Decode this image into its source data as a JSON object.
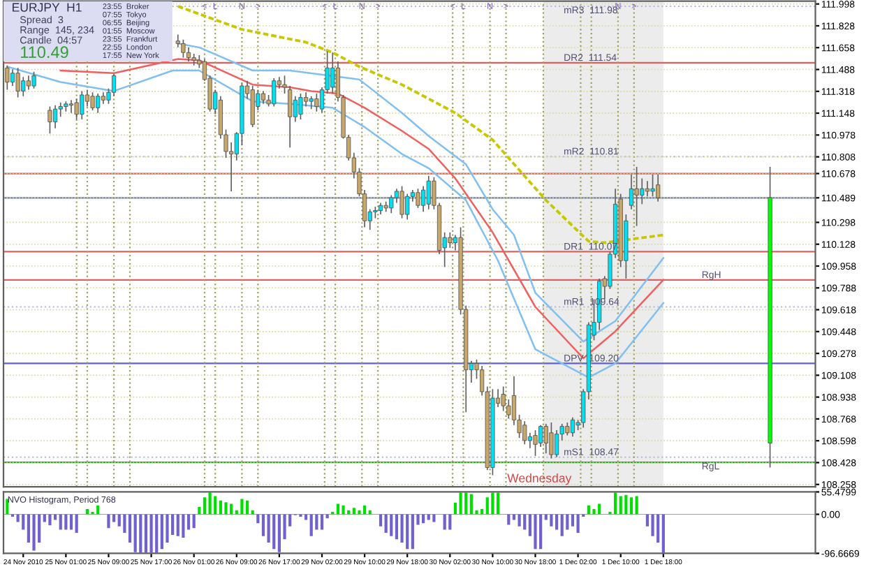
{
  "chart_data": [
    {
      "type": "candlestick",
      "title": "EURJPY  H1",
      "annotations": [
        "Spread  3",
        "Range  145, 234",
        "Candle  04:57",
        "110.49",
        "23:55  Broker",
        "07:55  Tokyo",
        "06:55  Beijing",
        "01:55  Moscow",
        "23:55  Frankfurt",
        "22:55  London",
        "17:55  New York",
        "Wednesday",
        "<",
        "L",
        "N",
        ">",
        "<",
        "L",
        "N",
        ">",
        "<",
        "L",
        "N",
        ">",
        "N",
        ">"
      ],
      "categories": [
        null,
        null,
        null,
        null,
        null,
        null,
        null,
        null,
        null,
        null,
        null,
        null,
        null,
        null,
        null,
        null,
        null,
        null,
        null,
        null,
        null,
        null,
        null,
        null,
        null,
        null,
        null,
        null,
        null,
        null,
        null,
        null,
        null,
        null,
        null,
        null,
        null,
        null,
        null,
        null,
        null,
        null,
        null,
        null,
        null,
        null,
        null,
        null,
        null,
        null,
        null,
        null,
        null,
        null,
        null,
        null,
        null,
        null,
        null,
        null,
        null,
        null,
        null,
        null,
        null,
        null,
        null,
        null,
        null,
        null,
        null,
        null,
        null,
        null,
        null,
        null,
        null,
        null,
        null,
        null,
        null,
        null,
        null,
        null,
        null,
        null,
        null,
        null,
        null,
        null,
        null,
        null,
        null,
        null,
        null,
        null,
        null,
        null,
        null,
        null,
        null,
        null,
        null,
        null,
        null,
        null,
        null,
        null,
        null,
        null,
        null,
        null,
        null,
        null,
        null,
        null,
        null,
        null,
        null,
        null,
        null,
        null,
        null,
        null,
        null,
        null,
        null,
        null,
        null,
        null,
        null,
        null,
        null,
        null,
        null,
        null,
        null,
        null,
        null,
        null,
        null,
        null,
        null,
        null,
        null,
        null,
        null,
        null,
        null,
        null,
        null,
        null
      ],
      "ylim": [
        108.24,
        112.02
      ],
      "yticks": [
        111.998,
        111.828,
        111.658,
        111.488,
        111.318,
        111.148,
        110.978,
        110.808,
        {
          "value": 110.678,
          "label": "110.678"
        },
        {
          "value": 110.489,
          "label": "110.489"
        },
        110.298,
        110.128,
        109.958,
        109.788,
        109.618,
        109.448,
        109.278,
        109.108,
        108.938,
        108.768,
        108.598,
        108.428,
        108.258
      ],
      "tick_labels": "y",
      "grid": "y",
      "legend": false,
      "ohlc": [
        [
          111.5,
          111.52,
          111.33,
          111.39
        ],
        [
          111.39,
          111.49,
          111.36,
          111.46
        ],
        [
          111.46,
          111.5,
          111.27,
          111.32
        ],
        [
          111.32,
          111.43,
          111.28,
          111.4
        ],
        [
          111.4,
          111.44,
          111.33,
          111.36
        ],
        [
          111.36,
          111.47,
          111.34,
          111.44
        ],
        null,
        null,
        [
          111.17,
          111.2,
          110.99,
          111.08
        ],
        [
          111.08,
          111.21,
          111.03,
          111.18
        ],
        [
          111.18,
          111.23,
          111.12,
          111.2
        ],
        [
          111.2,
          111.24,
          111.16,
          111.22
        ],
        [
          111.22,
          111.25,
          111.15,
          111.21
        ],
        [
          111.23,
          111.26,
          111.1,
          111.14
        ],
        [
          111.14,
          111.32,
          111.1,
          111.29
        ],
        [
          111.29,
          111.33,
          111.2,
          111.24
        ],
        [
          111.28,
          111.31,
          111.17,
          111.19
        ],
        [
          111.19,
          111.3,
          111.15,
          111.28
        ],
        [
          111.28,
          111.31,
          111.22,
          111.25
        ],
        [
          111.25,
          111.34,
          111.22,
          111.31
        ],
        [
          111.31,
          111.45,
          111.28,
          111.44
        ],
        null,
        null,
        null,
        null,
        null,
        null,
        null,
        null,
        null,
        null,
        null,
        [
          111.71,
          111.76,
          111.66,
          111.69
        ],
        [
          111.69,
          111.72,
          111.58,
          111.62
        ],
        [
          111.62,
          111.66,
          111.55,
          111.58
        ],
        [
          111.58,
          111.61,
          111.52,
          111.56
        ],
        [
          111.56,
          111.6,
          111.5,
          111.53
        ],
        [
          111.55,
          111.57,
          111.4,
          111.41
        ],
        [
          111.42,
          111.44,
          111.16,
          111.18
        ],
        [
          111.18,
          111.33,
          111.14,
          111.31
        ],
        [
          111.25,
          111.28,
          110.95,
          110.98
        ],
        [
          110.98,
          111.02,
          110.8,
          110.85
        ],
        [
          110.85,
          110.92,
          110.54,
          110.83
        ],
        [
          110.83,
          111.0,
          110.78,
          110.99
        ],
        [
          110.99,
          111.38,
          110.9,
          111.36
        ],
        [
          111.36,
          111.4,
          111.26,
          111.3
        ],
        [
          111.33,
          111.36,
          111.04,
          111.06
        ],
        [
          111.2,
          111.33,
          111.17,
          111.3
        ],
        [
          111.3,
          111.32,
          111.22,
          111.25
        ],
        [
          111.25,
          111.29,
          111.2,
          111.22
        ],
        [
          111.22,
          111.42,
          111.2,
          111.4
        ],
        [
          111.4,
          111.43,
          111.34,
          111.37
        ],
        [
          111.37,
          111.44,
          111.3,
          111.35
        ],
        [
          111.33,
          111.36,
          110.88,
          111.12
        ],
        [
          111.12,
          111.28,
          111.08,
          111.25
        ],
        [
          111.14,
          111.3,
          111.1,
          111.27
        ],
        [
          111.27,
          111.31,
          111.2,
          111.24
        ],
        [
          111.24,
          111.28,
          111.18,
          111.26
        ],
        [
          111.26,
          111.3,
          111.16,
          111.2
        ],
        [
          111.18,
          111.35,
          111.15,
          111.33
        ],
        [
          111.33,
          111.63,
          111.3,
          111.5
        ],
        [
          111.35,
          111.62,
          111.3,
          111.5
        ],
        [
          111.5,
          111.55,
          111.24,
          111.27
        ],
        [
          111.27,
          111.29,
          110.95,
          110.96
        ],
        [
          110.96,
          110.98,
          110.78,
          110.8
        ],
        [
          110.8,
          110.84,
          110.64,
          110.69
        ],
        [
          110.69,
          110.72,
          110.5,
          110.52
        ],
        [
          110.52,
          110.55,
          110.26,
          110.31
        ],
        [
          110.31,
          110.4,
          110.24,
          110.38
        ],
        [
          110.38,
          110.42,
          110.33,
          110.39
        ],
        [
          110.39,
          110.45,
          110.36,
          110.43
        ],
        [
          110.43,
          110.46,
          110.38,
          110.41
        ],
        [
          110.41,
          110.51,
          110.37,
          110.49
        ],
        [
          110.49,
          110.56,
          110.45,
          110.54
        ],
        [
          110.54,
          110.58,
          110.33,
          110.36
        ],
        [
          110.36,
          110.52,
          110.32,
          110.5
        ],
        [
          110.5,
          110.55,
          110.46,
          110.53
        ],
        [
          110.53,
          110.56,
          110.41,
          110.43
        ],
        [
          110.43,
          110.58,
          110.38,
          110.55
        ],
        [
          110.44,
          110.66,
          110.4,
          110.62
        ],
        [
          110.62,
          110.65,
          110.4,
          110.43
        ],
        [
          110.43,
          110.45,
          110.05,
          110.08
        ],
        [
          110.1,
          110.22,
          109.95,
          110.18
        ],
        [
          110.18,
          110.22,
          110.1,
          110.14
        ],
        [
          110.14,
          110.2,
          110.08,
          110.18
        ],
        [
          110.18,
          110.26,
          109.58,
          109.62
        ],
        [
          109.62,
          109.65,
          108.82,
          109.15
        ],
        [
          109.15,
          109.22,
          109.05,
          109.2
        ],
        [
          109.2,
          109.23,
          109.08,
          109.15
        ],
        [
          109.15,
          109.18,
          108.95,
          108.98
        ],
        [
          108.98,
          109.02,
          108.37,
          108.39
        ],
        [
          108.39,
          109.0,
          108.33,
          108.93
        ],
        [
          108.93,
          109.0,
          108.86,
          108.89
        ],
        [
          108.96,
          109.02,
          108.83,
          108.87
        ],
        [
          108.87,
          108.92,
          108.77,
          108.8
        ],
        [
          108.95,
          109.1,
          108.72,
          108.76
        ],
        [
          108.76,
          108.8,
          108.62,
          108.66
        ],
        [
          108.72,
          108.75,
          108.57,
          108.6
        ],
        [
          108.6,
          108.66,
          108.54,
          108.63
        ],
        [
          108.64,
          108.68,
          108.48,
          108.57
        ],
        [
          108.58,
          108.72,
          108.55,
          108.71
        ],
        [
          108.71,
          108.73,
          108.5,
          108.58
        ],
        [
          108.66,
          108.74,
          108.46,
          108.49
        ],
        [
          108.49,
          108.68,
          108.47,
          108.65
        ],
        [
          108.65,
          108.73,
          108.6,
          108.71
        ],
        [
          108.71,
          108.74,
          108.64,
          108.66
        ],
        [
          108.66,
          108.78,
          108.63,
          108.76
        ],
        [
          108.72,
          108.76,
          108.68,
          108.74
        ],
        [
          108.74,
          109.0,
          108.7,
          108.98
        ],
        [
          108.98,
          109.52,
          108.92,
          109.5
        ],
        [
          109.42,
          109.7,
          109.38,
          109.52
        ],
        [
          109.52,
          109.86,
          109.46,
          109.84
        ],
        [
          109.86,
          109.88,
          109.7,
          109.8
        ],
        [
          109.8,
          110.07,
          109.78,
          110.05
        ],
        [
          110.05,
          110.56,
          110.02,
          110.44
        ],
        [
          110.48,
          110.52,
          109.95,
          110.0
        ],
        [
          110.0,
          110.36,
          109.86,
          110.31
        ],
        [
          110.43,
          110.67,
          110.4,
          110.56
        ],
        [
          110.56,
          110.73,
          110.27,
          110.51
        ],
        [
          110.51,
          110.64,
          110.44,
          110.56
        ],
        [
          110.56,
          110.62,
          110.5,
          110.54
        ],
        [
          110.54,
          110.67,
          110.5,
          110.56
        ],
        [
          110.59,
          110.67,
          110.46,
          110.49
        ],
        null,
        null,
        null,
        null,
        null,
        null,
        null,
        null,
        null,
        null,
        null,
        null,
        null,
        null,
        null,
        null,
        null,
        null,
        null,
        null,
        [
          108.58,
          110.73,
          108.39,
          110.49
        ],
        null,
        null,
        null,
        null,
        null,
        null,
        null,
        null
      ],
      "colors": [
        "#c8a868",
        "#00e0f0",
        "#c8a868",
        "#00e0f0",
        "#c8a868",
        "#00e0f0",
        null,
        null,
        "#c8a868",
        "#00e0f0",
        "#00e0f0",
        "#00e0f0",
        "#c8a868",
        "#c8a868",
        "#00e0f0",
        "#c8a868",
        "#c8a868",
        "#00e0f0",
        "#c8a868",
        "#00e0f0",
        "#00e0f0",
        null,
        null,
        null,
        null,
        null,
        null,
        null,
        null,
        null,
        null,
        null,
        "#c8a868",
        "#c8a868",
        "#c8a868",
        "#c8a868",
        "#c8a868",
        "#c8a868",
        "#c8a868",
        "#00e0f0",
        "#c8a868",
        "#c8a868",
        "#c8a868",
        "#00e0f0",
        "#00e0f0",
        "#c8a868",
        "#c8a868",
        "#00e0f0",
        "#c8a868",
        "#c8a868",
        "#00e0f0",
        "#c8a868",
        "#c8a868",
        "#c8a868",
        "#00e0f0",
        "#00e0f0",
        "#c8a868",
        "#00e0f0",
        "#c8a868",
        "#00e0f0",
        "#00e0f0",
        "#00e0f0",
        "#c8a868",
        "#c8a868",
        "#c8a868",
        "#c8a868",
        "#c8a868",
        "#c8a868",
        "#00e0f0",
        "#00e0f0",
        "#00e0f0",
        "#c8a868",
        "#00e0f0",
        "#00e0f0",
        "#c8a868",
        "#00e0f0",
        "#00e0f0",
        "#c8a868",
        "#00e0f0",
        "#00e0f0",
        "#c8a868",
        "#c8a868",
        "#00e0f0",
        "#c8a868",
        "#00e0f0",
        "#c8a868",
        "#c8a868",
        "#00e0f0",
        "#c8a868",
        "#c8a868",
        "#c8a868",
        "#00e0f0",
        "#c8a868",
        "#c8a868",
        "#c8a868",
        "#c8a868",
        "#c8a868",
        "#c8a868",
        "#00e0f0",
        "#c8a868",
        "#00e0f0",
        "#c8a868",
        "#c8a868",
        "#00e0f0",
        "#00e0f0",
        "#c8a868",
        "#00e0f0",
        "#00e0f0",
        "#00e0f0",
        "#00e0f0",
        "#00e0f0",
        "#00e0f0",
        "#c8a868",
        "#00e0f0",
        "#00e0f0",
        "#c8a868",
        "#00e0f0",
        "#00e0f0",
        "#c8a868",
        "#00e0f0",
        "#c8a868",
        "#00e0f0",
        "#c8a868",
        null,
        null,
        null,
        null,
        null,
        null,
        null,
        null,
        null,
        null,
        null,
        null,
        null,
        null,
        null,
        null,
        null,
        null,
        null,
        null,
        "#00ff00",
        null,
        null,
        null,
        null,
        null,
        null,
        null,
        null
      ],
      "series": [
        {
          "type": "line",
          "color": "#c8c800",
          "line_style": "dashed",
          "values": [
            null,
            null,
            null,
            null,
            null,
            null,
            null,
            null,
            null,
            null,
            null,
            null,
            null,
            null,
            null,
            null,
            null,
            null,
            null,
            null,
            null,
            null,
            null,
            null,
            null,
            null,
            null,
            null,
            null,
            null,
            null,
            null,
            111.98,
            null,
            null,
            null,
            null,
            null,
            null,
            null,
            null,
            null,
            null,
            null,
            111.8,
            null,
            null,
            null,
            null,
            null,
            null,
            null,
            null,
            null,
            null,
            null,
            111.7,
            null,
            null,
            null,
            null,
            111.62,
            null,
            null,
            null,
            null,
            111.51,
            null,
            null,
            null,
            null,
            null,
            null,
            null,
            111.37,
            null,
            null,
            null,
            null,
            null,
            null,
            null,
            null,
            null,
            111.15,
            null,
            null,
            null,
            null,
            null,
            null,
            110.94,
            null,
            null,
            null,
            null,
            null,
            null,
            null,
            null,
            null,
            110.47,
            null,
            null,
            null,
            null,
            null,
            null,
            null,
            110.15,
            null,
            null,
            110.14,
            null,
            null,
            null,
            null,
            null,
            null,
            null,
            null,
            null,
            null,
            110.2,
            null,
            null,
            null,
            null,
            null,
            null,
            null,
            null,
            null,
            null,
            null,
            null,
            null,
            null,
            null,
            null,
            null,
            null,
            null,
            null,
            null,
            null,
            null,
            null,
            null,
            null,
            null,
            null
          ]
        },
        {
          "type": "line",
          "color": "#f06060",
          "values": [
            null,
            null,
            null,
            null,
            null,
            null,
            null,
            null,
            null,
            null,
            111.48,
            null,
            null,
            null,
            null,
            null,
            null,
            null,
            null,
            null,
            111.46,
            null,
            null,
            null,
            null,
            null,
            null,
            null,
            null,
            null,
            null,
            null,
            111.57,
            null,
            null,
            null,
            111.56,
            null,
            null,
            null,
            null,
            null,
            null,
            null,
            null,
            null,
            111.37,
            null,
            null,
            null,
            null,
            null,
            null,
            111.35,
            null,
            null,
            null,
            111.32,
            null,
            null,
            null,
            null,
            111.3,
            null,
            null,
            null,
            null,
            111.19,
            null,
            null,
            null,
            null,
            null,
            null,
            111.01,
            null,
            null,
            null,
            null,
            110.87,
            null,
            null,
            null,
            null,
            110.64,
            null,
            null,
            null,
            null,
            null,
            null,
            110.22,
            null,
            null,
            null,
            null,
            null,
            null,
            null,
            109.64,
            null,
            null,
            null,
            null,
            null,
            null,
            null,
            null,
            109.24,
            null,
            null,
            null,
            null,
            null,
            109.45,
            null,
            null,
            null,
            null,
            null,
            null,
            null,
            null,
            109.85,
            null,
            null,
            null,
            null,
            null,
            null,
            null,
            null,
            null,
            null,
            null,
            null,
            null,
            null,
            null,
            null,
            null,
            null,
            null,
            null,
            null,
            null,
            null,
            null,
            null,
            null,
            null,
            null
          ]
        },
        {
          "type": "line",
          "color": "#80c0f0",
          "values": [
            null,
            null,
            null,
            null,
            null,
            null,
            null,
            null,
            null,
            null,
            null,
            null,
            null,
            null,
            null,
            null,
            null,
            null,
            null,
            null,
            null,
            null,
            null,
            null,
            null,
            null,
            null,
            null,
            null,
            null,
            null,
            null,
            111.69,
            null,
            null,
            null,
            111.66,
            null,
            null,
            null,
            null,
            null,
            null,
            null,
            null,
            null,
            111.48,
            null,
            null,
            null,
            null,
            null,
            null,
            111.48,
            null,
            null,
            null,
            null,
            null,
            null,
            null,
            null,
            null,
            null,
            null,
            null,
            111.41,
            null,
            null,
            null,
            null,
            null,
            null,
            null,
            111.15,
            null,
            null,
            null,
            null,
            110.97,
            null,
            null,
            null,
            null,
            null,
            null,
            110.75,
            null,
            null,
            null,
            null,
            110.4,
            null,
            null,
            null,
            110.2,
            null,
            null,
            null,
            109.75,
            null,
            null,
            null,
            null,
            null,
            null,
            null,
            null,
            109.37,
            null,
            null,
            null,
            null,
            null,
            109.53,
            null,
            null,
            null,
            null,
            null,
            null,
            null,
            null,
            110.02,
            null,
            null,
            null,
            null,
            null,
            null,
            null,
            null,
            null,
            null,
            null,
            null,
            null,
            null,
            null,
            null,
            null,
            null,
            null,
            null,
            null,
            null,
            null,
            null,
            null,
            null,
            null,
            null
          ]
        },
        {
          "type": "line",
          "color": "#80c0f0",
          "values": [
            111.51,
            null,
            null,
            null,
            null,
            null,
            null,
            null,
            null,
            null,
            111.39,
            null,
            null,
            null,
            null,
            null,
            null,
            null,
            null,
            null,
            111.32,
            null,
            null,
            null,
            null,
            null,
            null,
            null,
            null,
            null,
            null,
            111.48,
            null,
            null,
            null,
            null,
            111.48,
            null,
            null,
            null,
            null,
            null,
            null,
            null,
            null,
            null,
            111.24,
            null,
            null,
            null,
            null,
            null,
            null,
            111.22,
            null,
            null,
            null,
            null,
            null,
            null,
            null,
            111.19,
            null,
            null,
            null,
            null,
            null,
            111.04,
            null,
            null,
            null,
            null,
            null,
            null,
            110.83,
            null,
            null,
            null,
            null,
            110.72,
            null,
            null,
            null,
            null,
            null,
            null,
            110.47,
            null,
            null,
            null,
            null,
            null,
            110.0,
            null,
            null,
            null,
            null,
            null,
            null,
            109.31,
            null,
            null,
            null,
            null,
            null,
            null,
            null,
            null,
            null,
            109.09,
            null,
            null,
            null,
            null,
            109.2,
            null,
            null,
            null,
            null,
            null,
            null,
            null,
            null,
            109.67,
            null,
            null,
            null,
            null,
            null,
            null,
            null,
            null,
            null,
            null,
            null,
            null,
            null,
            null,
            null,
            null,
            null,
            null,
            null,
            null,
            null,
            null,
            null,
            null,
            null,
            null,
            null,
            null
          ]
        }
      ],
      "ref_lines": [
        {
          "axis": "y",
          "value": 111.98,
          "label": "mR3  111.98",
          "color": "#b8b8d8",
          "line_style": "dotted"
        },
        {
          "axis": "y",
          "value": 111.54,
          "label": "DR2  111.54",
          "color": "#e06060"
        },
        {
          "axis": "y",
          "value": 110.81,
          "label": "mR2  110.81",
          "color": "#b8b8d8",
          "line_style": "dotted"
        },
        {
          "axis": "y",
          "value": 110.678,
          "label": null,
          "color": "#e06060"
        },
        {
          "axis": "y",
          "value": 110.489,
          "label": null,
          "color": "#7080a0"
        },
        {
          "axis": "y",
          "value": 110.07,
          "label": "DR1  110.07",
          "color": "#e06060"
        },
        {
          "axis": "y",
          "value": 109.85,
          "label": "RgH",
          "color": "#e06060"
        },
        {
          "axis": "y",
          "value": 109.64,
          "label": "mR1  109.64",
          "color": "#b8b8d8",
          "line_style": "dotted"
        },
        {
          "axis": "y",
          "value": 109.2,
          "label": "DPV  109.20",
          "color": "#6060d0"
        },
        {
          "axis": "y",
          "value": 108.47,
          "label": "mS1  108.47",
          "color": "#b8b8d8",
          "line_style": "dotted"
        },
        {
          "axis": "y",
          "value": 108.43,
          "label": "RgL",
          "color": "#20b020"
        }
      ]
    },
    {
      "type": "bar",
      "title": "NVO Histogram, Period 768",
      "legend": false,
      "categories": [
        null,
        null,
        null,
        "24 Nov 2010",
        null,
        null,
        null,
        null,
        null,
        null,
        null,
        "25 Nov 01:00",
        null,
        null,
        null,
        null,
        null,
        null,
        null,
        "25 Nov 09:00",
        null,
        null,
        null,
        null,
        null,
        null,
        null,
        "25 Nov 17:00",
        null,
        null,
        null,
        null,
        null,
        null,
        null,
        "26 Nov 01:00",
        null,
        null,
        null,
        null,
        null,
        null,
        null,
        "26 Nov 09:00",
        null,
        null,
        null,
        null,
        null,
        null,
        null,
        "26 Nov 17:00",
        null,
        null,
        null,
        null,
        null,
        null,
        null,
        "29 Nov 02:00",
        null,
        null,
        null,
        null,
        null,
        null,
        null,
        "29 Nov 10:00",
        null,
        null,
        null,
        null,
        null,
        null,
        null,
        "29 Nov 18:00",
        null,
        null,
        null,
        null,
        null,
        null,
        null,
        "30 Nov 02:00",
        null,
        null,
        null,
        null,
        null,
        null,
        null,
        "30 Nov 10:00",
        null,
        null,
        null,
        null,
        null,
        null,
        null,
        "30 Nov 18:00",
        null,
        null,
        null,
        null,
        null,
        null,
        null,
        "1 Dec 02:00",
        null,
        null,
        null,
        null,
        null,
        null,
        null,
        "1 Dec 10:00",
        null,
        null,
        null,
        null,
        null,
        null,
        null,
        "1 Dec 18:00",
        null,
        null,
        null,
        null,
        null,
        null,
        null,
        null,
        null,
        null,
        null,
        null,
        null,
        null,
        null,
        null,
        null,
        null,
        null,
        null,
        null,
        null,
        null,
        null,
        null,
        null,
        null,
        null
      ],
      "ylim": [
        -96.6669,
        55.4799
      ],
      "yticks": [
        55.4799,
        {
          "value": 0,
          "label": "0.00"
        },
        -96.6669
      ],
      "series": [
        {
          "color": "#00e000",
          "values": [
            38,
            null,
            null,
            null,
            null,
            null,
            null,
            null,
            null,
            null,
            null,
            null,
            null,
            null,
            null,
            13,
            6,
            22,
            null,
            null,
            null,
            null,
            null,
            null,
            null,
            null,
            null,
            null,
            null,
            null,
            null,
            null,
            null,
            null,
            null,
            null,
            18,
            42,
            55,
            45,
            34,
            30,
            26,
            10,
            38,
            34,
            10,
            null,
            null,
            null,
            null,
            null,
            null,
            null,
            null,
            null,
            null,
            null,
            null,
            null,
            null,
            6,
            26,
            22,
            10,
            16,
            10,
            22,
            10,
            null,
            null,
            null,
            null,
            null,
            null,
            null,
            null,
            null,
            null,
            null,
            null,
            null,
            null,
            null,
            29,
            54,
            54,
            50,
            10,
            13,
            42,
            54,
            54,
            null,
            null,
            null,
            null,
            null,
            null,
            null,
            null,
            null,
            null,
            null,
            null,
            null,
            null,
            null,
            null,
            22,
            13,
            26,
            null,
            6,
            54,
            45,
            48,
            42,
            45,
            null,
            null,
            null,
            null,
            null,
            null,
            null,
            null,
            null,
            null,
            null,
            null,
            null,
            null,
            null,
            null,
            null,
            null,
            null,
            null,
            null,
            null,
            null,
            null,
            null,
            null,
            null,
            null,
            null,
            null,
            null,
            null,
            null
          ]
        },
        {
          "color": "#7060d0",
          "values": [
            null,
            -6,
            -19,
            -38,
            -70,
            -90,
            -70,
            -19,
            -27,
            -14,
            -38,
            -38,
            -38,
            -46,
            null,
            null,
            null,
            null,
            null,
            -34,
            -19,
            -30,
            -46,
            -70,
            -94,
            -96,
            -96,
            -96,
            -96,
            -86,
            -70,
            -51,
            -54,
            -58,
            -38,
            -34,
            null,
            null,
            null,
            null,
            null,
            null,
            null,
            null,
            null,
            null,
            null,
            -22,
            -54,
            -70,
            -86,
            -94,
            -62,
            -30,
            -2,
            -6,
            -14,
            -54,
            -38,
            -38,
            -10,
            null,
            null,
            null,
            null,
            null,
            null,
            null,
            null,
            null,
            -30,
            -46,
            -54,
            -62,
            -70,
            -86,
            -86,
            -26,
            -22,
            -14,
            -19,
            null,
            -38,
            -38,
            null,
            null,
            null,
            null,
            null,
            null,
            null,
            null,
            null,
            null,
            -26,
            -14,
            -30,
            -38,
            -54,
            -86,
            -86,
            -14,
            -30,
            -38,
            -54,
            -38,
            -30,
            -46,
            -6,
            null,
            null,
            null,
            null,
            null,
            null,
            null,
            null,
            null,
            null,
            null,
            -30,
            -54,
            -70,
            -96,
            null,
            null,
            null,
            null,
            null,
            null,
            null,
            null,
            null,
            null,
            null,
            null,
            null,
            null,
            null,
            null,
            null,
            null,
            null,
            null,
            null,
            null,
            null,
            null,
            null,
            null,
            null,
            null
          ]
        }
      ]
    }
  ]
}
